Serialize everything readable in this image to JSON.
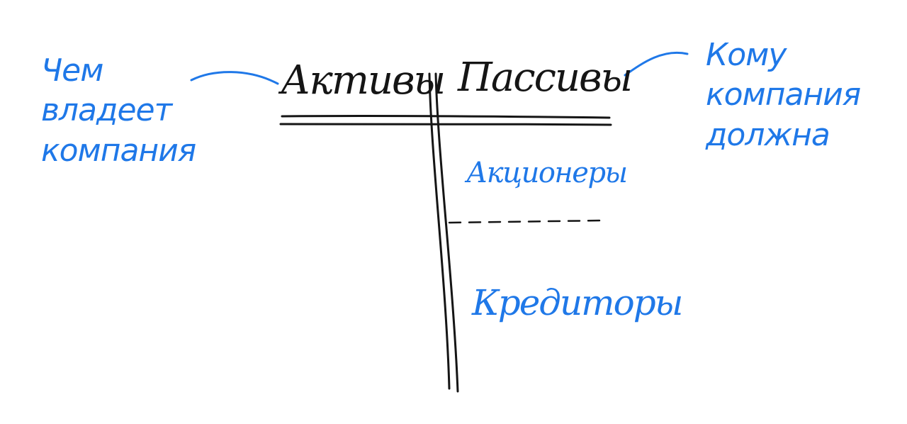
{
  "diagram": {
    "left_column_header": "Активы",
    "right_column_header": "Пассивы",
    "right_sections": {
      "top": "Акционеры",
      "bottom": "Кредиторы"
    },
    "annotations": {
      "left": {
        "line1": "Чем",
        "line2": "владеет",
        "line3": "компания"
      },
      "right": {
        "line1": "Кому",
        "line2": "компания",
        "line3": "должна"
      }
    }
  },
  "colors": {
    "black_ink": "#151515",
    "blue_ink": "#1f78e8",
    "background": "#ffffff"
  }
}
